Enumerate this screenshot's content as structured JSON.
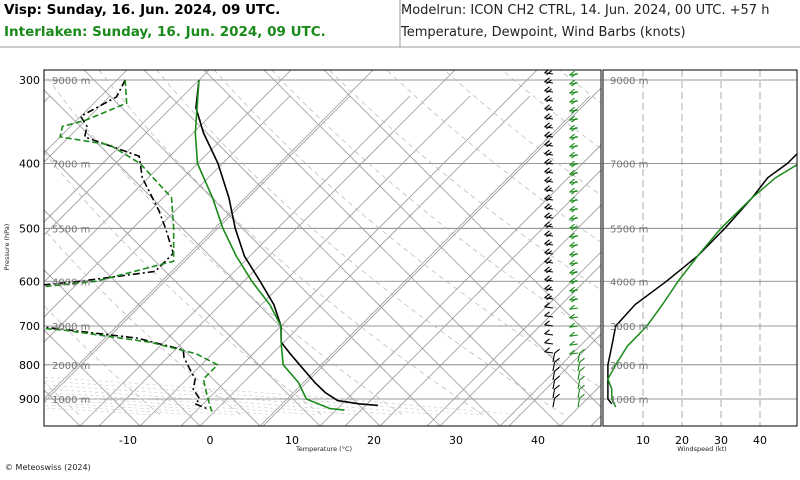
{
  "header": {
    "station1": "Visp: Sunday, 16. Jun. 2024, 09 UTC.",
    "station2": "Interlaken: Sunday, 16. Jun. 2024, 09 UTC.",
    "model": "Modelrun: ICON CH2 CTRL, 14. Jun. 2024, 00 UTC. +57 h",
    "variables": "Temperature, Dewpoint, Wind Barbs (knots)"
  },
  "footer": {
    "copyright": "© Meteoswiss (2024)"
  },
  "colors": {
    "visp": "#000000",
    "interlaken": "#1a8a1a",
    "grid": "#9a9a9a"
  },
  "chart_data": [
    {
      "type": "line",
      "chart": "skew-t",
      "xlabel": "Temperature (°C)",
      "ylabel": "Pressure (hPa)",
      "xlim": [
        -20,
        45
      ],
      "ylim": [
        950,
        290
      ],
      "y_scale": "log",
      "x_ticks": [
        -10,
        0,
        10,
        20,
        30,
        40
      ],
      "y_ticks": [
        300,
        400,
        500,
        600,
        700,
        800,
        900
      ],
      "altitude_labels": [
        {
          "p": 300,
          "label": "9000 m"
        },
        {
          "p": 400,
          "label": "7000 m"
        },
        {
          "p": 500,
          "label": "5500 m"
        },
        {
          "p": 600,
          "label": "4000 m"
        },
        {
          "p": 700,
          "label": "3000 m"
        },
        {
          "p": 800,
          "label": "2000 m"
        },
        {
          "p": 900,
          "label": "1000 m"
        }
      ],
      "series": [
        {
          "station": "Visp",
          "variable": "Temperature",
          "color": "#000000",
          "dash": "solid",
          "points": [
            [
              300,
              -40
            ],
            [
              330,
              -37
            ],
            [
              360,
              -33
            ],
            [
              400,
              -27.5
            ],
            [
              450,
              -22
            ],
            [
              500,
              -17.5
            ],
            [
              550,
              -13
            ],
            [
              600,
              -8
            ],
            [
              650,
              -3.5
            ],
            [
              700,
              0
            ],
            [
              740,
              2
            ],
            [
              770,
              4.5
            ],
            [
              800,
              7
            ],
            [
              850,
              11
            ],
            [
              880,
              13.5
            ],
            [
              905,
              16
            ],
            [
              915,
              19
            ],
            [
              920,
              21.5
            ]
          ]
        },
        {
          "station": "Visp",
          "variable": "Dewpoint",
          "color": "#000000",
          "dash": "dashdot",
          "points": [
            [
              300,
              -49
            ],
            [
              318,
              -48
            ],
            [
              340,
              -50
            ],
            [
              352,
              -48
            ],
            [
              365,
              -47
            ],
            [
              390,
              -38
            ],
            [
              420,
              -35
            ],
            [
              470,
              -29
            ],
            [
              500,
              -26
            ],
            [
              545,
              -22
            ],
            [
              580,
              -22
            ],
            [
              600,
              -30
            ],
            [
              625,
              -43
            ],
            [
              650,
              -45
            ],
            [
              665,
              -41
            ],
            [
              700,
              -30
            ],
            [
              730,
              -16
            ],
            [
              760,
              -9
            ],
            [
              780,
              -8
            ],
            [
              810,
              -6
            ],
            [
              840,
              -4
            ],
            [
              870,
              -3
            ],
            [
              900,
              -1
            ],
            [
              915,
              -1
            ],
            [
              930,
              1
            ]
          ]
        },
        {
          "station": "Interlaken",
          "variable": "Temperature",
          "color": "#1a8a1a",
          "dash": "solid",
          "points": [
            [
              300,
              -40
            ],
            [
              360,
              -34
            ],
            [
              400,
              -30
            ],
            [
              450,
              -24
            ],
            [
              500,
              -19
            ],
            [
              550,
              -14
            ],
            [
              600,
              -9
            ],
            [
              650,
              -4
            ],
            [
              700,
              0
            ],
            [
              750,
              2.5
            ],
            [
              800,
              5
            ],
            [
              850,
              9
            ],
            [
              900,
              12
            ],
            [
              930,
              16
            ],
            [
              935,
              18
            ]
          ]
        },
        {
          "station": "Interlaken",
          "variable": "Dewpoint",
          "color": "#1a8a1a",
          "dash": "dashed",
          "points": [
            [
              300,
              -49
            ],
            [
              325,
              -46
            ],
            [
              345,
              -49
            ],
            [
              352,
              -51
            ],
            [
              365,
              -50
            ],
            [
              375,
              -43
            ],
            [
              400,
              -37
            ],
            [
              450,
              -29
            ],
            [
              500,
              -25
            ],
            [
              560,
              -21
            ],
            [
              600,
              -28
            ],
            [
              630,
              -43
            ],
            [
              660,
              -46
            ],
            [
              690,
              -40
            ],
            [
              710,
              -26
            ],
            [
              740,
              -14
            ],
            [
              770,
              -7
            ],
            [
              800,
              -3
            ],
            [
              840,
              -3
            ],
            [
              880,
              -1
            ],
            [
              920,
              1
            ],
            [
              940,
              2
            ]
          ]
        }
      ]
    },
    {
      "type": "line",
      "chart": "wind-speed-profile",
      "xlabel": "Windspeed (kt)",
      "xlim": [
        0,
        50
      ],
      "x_ticks": [
        10,
        20,
        30,
        40
      ],
      "altitude_labels": [
        "9000 m",
        "7000 m",
        "5500 m",
        "4000 m",
        "3000 m",
        "2000 m",
        "1000 m"
      ],
      "series": [
        {
          "station": "Visp",
          "color": "#000000",
          "points": [
            [
              300,
              60
            ],
            [
              360,
              55
            ],
            [
              400,
              47
            ],
            [
              420,
              42
            ],
            [
              450,
              38
            ],
            [
              500,
              31
            ],
            [
              550,
              24
            ],
            [
              600,
              16
            ],
            [
              650,
              8
            ],
            [
              700,
              3
            ],
            [
              750,
              2
            ],
            [
              800,
              1
            ],
            [
              850,
              1
            ],
            [
              900,
              1
            ],
            [
              915,
              2
            ]
          ]
        },
        {
          "station": "Interlaken",
          "color": "#1a8a1a",
          "points": [
            [
              300,
              62
            ],
            [
              360,
              58
            ],
            [
              400,
              50
            ],
            [
              420,
              44
            ],
            [
              450,
              38
            ],
            [
              500,
              30
            ],
            [
              550,
              24
            ],
            [
              600,
              19
            ],
            [
              650,
              15
            ],
            [
              700,
              11
            ],
            [
              750,
              6
            ],
            [
              800,
              3
            ],
            [
              840,
              1
            ],
            [
              870,
              2
            ],
            [
              900,
              2
            ],
            [
              925,
              3
            ]
          ]
        }
      ]
    }
  ],
  "wind_barbs": [
    {
      "station": "Visp",
      "color": "#000000"
    },
    {
      "station": "Interlaken",
      "color": "#1a8a1a"
    }
  ]
}
